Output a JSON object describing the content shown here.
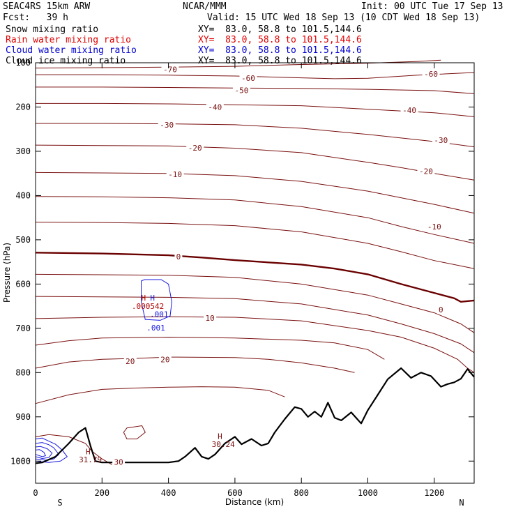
{
  "header": {
    "model": "SEAC4RS 15km ARW",
    "center": "NCAR/MMM",
    "init": "Init: 00 UTC Tue 17 Sep 13",
    "fcst": "Fcst:   39 h",
    "valid": "Valid: 15 UTC Wed 18 Sep 13 (10 CDT Wed 18 Sep 13)",
    "fields": [
      {
        "name": "Snow mixing ratio",
        "xy": "XY=  83.0, 58.8 to 101.5,144.6",
        "color": "#000000"
      },
      {
        "name": "Rain water mixing ratio",
        "xy": "XY=  83.0, 58.8 to 101.5,144.6",
        "color": "#e00000"
      },
      {
        "name": "Cloud water mixing ratio",
        "xy": "XY=  83.0, 58.8 to 101.5,144.6",
        "color": "#0000d0"
      },
      {
        "name": "Cloud ice mixing ratio",
        "xy": "XY=  83.0, 58.8 to 101.5,144.6",
        "color": "#000000"
      }
    ]
  },
  "chart_data": {
    "type": "line",
    "xlabel": "Distance (km)",
    "ylabel": "Pressure (hPa)",
    "xlim": [
      0,
      1320
    ],
    "ylim": [
      1050,
      100
    ],
    "x_ticks": [
      0,
      200,
      400,
      600,
      800,
      1000,
      1200
    ],
    "y_ticks": [
      100,
      200,
      300,
      400,
      500,
      600,
      700,
      800,
      900,
      1000
    ],
    "x_tick_labels": [
      "0",
      "200",
      "400",
      "600",
      "800",
      "1000",
      "1200"
    ],
    "y_tick_labels": [
      "100",
      "200",
      "300",
      "400",
      "500",
      "600",
      "700",
      "800",
      "900",
      "1000"
    ],
    "end_labels": {
      "left": "S",
      "right": "N"
    },
    "colors": {
      "temperature": "#7a1010",
      "zero_isotherm": "#6a0000",
      "cloud_water": "#1a1ae0",
      "terrain": "#000000",
      "rain_label": "#b00000"
    },
    "isotherms": [
      {
        "label": "-70",
        "x": [
          0,
          200,
          400,
          600,
          700,
          800,
          1000,
          1150,
          1220
        ],
        "y": [
          112,
          111,
          110,
          108,
          106,
          104,
          101,
          97,
          94
        ]
      },
      {
        "label": "-60",
        "x": [
          0,
          200,
          400,
          600,
          800,
          900,
          1000,
          1150,
          1320
        ],
        "y": [
          127,
          127,
          128,
          130,
          134,
          136,
          135,
          128,
          122
        ]
      },
      {
        "label": "-50",
        "x": [
          0,
          200,
          400,
          600,
          800,
          1000,
          1200,
          1320
        ],
        "y": [
          155,
          155,
          156,
          157,
          158,
          160,
          163,
          170
        ]
      },
      {
        "label": "-40",
        "x": [
          0,
          200,
          400,
          600,
          800,
          1000,
          1200,
          1320
        ],
        "y": [
          192,
          192,
          193,
          195,
          197,
          205,
          213,
          222
        ]
      },
      {
        "label": "-30",
        "x": [
          0,
          200,
          400,
          600,
          800,
          1000,
          1100,
          1200,
          1320
        ],
        "y": [
          237,
          237,
          238,
          240,
          248,
          262,
          270,
          278,
          290
        ]
      },
      {
        "label": "-20",
        "x": [
          0,
          200,
          400,
          600,
          800,
          1000,
          1100,
          1200,
          1320
        ],
        "y": [
          286,
          287,
          288,
          293,
          303,
          325,
          337,
          350,
          365
        ]
      },
      {
        "label": "-10",
        "x": [
          0,
          200,
          400,
          600,
          800,
          1000,
          1100,
          1200,
          1320
        ],
        "y": [
          348,
          349,
          350,
          355,
          368,
          390,
          405,
          420,
          440
        ]
      },
      {
        "label": "-10",
        "x": [
          0,
          200,
          400,
          600,
          800,
          1000,
          1100,
          1200,
          1320
        ],
        "y": [
          402,
          403,
          405,
          410,
          425,
          450,
          470,
          488,
          508
        ]
      },
      {
        "label": "-10",
        "x": [
          0,
          200,
          400,
          600,
          800,
          1000,
          1100,
          1200,
          1320
        ],
        "y": [
          460,
          461,
          463,
          468,
          482,
          508,
          527,
          547,
          565
        ]
      },
      {
        "label": "0",
        "x": [
          0,
          200,
          400,
          500,
          600,
          800,
          900,
          1000,
          1100,
          1200,
          1260,
          1280,
          1320
        ],
        "y": [
          529,
          531,
          535,
          540,
          546,
          556,
          565,
          578,
          600,
          620,
          632,
          640,
          637
        ]
      },
      {
        "label": "0",
        "x": [
          0,
          200,
          400,
          600,
          800,
          1000,
          1100,
          1200,
          1280,
          1320
        ],
        "y": [
          578,
          579,
          580,
          585,
          600,
          625,
          645,
          665,
          690,
          710
        ]
      },
      {
        "label": "10",
        "x": [
          0,
          200,
          400,
          600,
          800,
          1000,
          1100,
          1200,
          1280,
          1320
        ],
        "y": [
          628,
          629,
          630,
          633,
          645,
          670,
          690,
          712,
          735,
          755
        ]
      },
      {
        "label": "10",
        "x": [
          0,
          200,
          400,
          600,
          800,
          1000,
          1100,
          1200,
          1270,
          1300,
          1320
        ],
        "y": [
          678,
          675,
          674,
          675,
          683,
          705,
          720,
          745,
          770,
          790,
          800
        ]
      },
      {
        "label": "20",
        "x": [
          0,
          100,
          200,
          400,
          600,
          800,
          900,
          1000,
          1050
        ],
        "y": [
          738,
          728,
          722,
          720,
          722,
          727,
          733,
          748,
          770
        ]
      },
      {
        "label": "20",
        "x": [
          0,
          100,
          200,
          300,
          400,
          600,
          700,
          800,
          900,
          960
        ],
        "y": [
          790,
          776,
          770,
          768,
          765,
          766,
          770,
          778,
          790,
          800
        ]
      },
      {
        "label": "20",
        "x": [
          0,
          100,
          200,
          300,
          400,
          500,
          600,
          700,
          750
        ],
        "y": [
          870,
          850,
          838,
          835,
          833,
          832,
          833,
          840,
          855
        ]
      },
      {
        "label": "30",
        "x": [
          0,
          40,
          100,
          150,
          170,
          200,
          230
        ],
        "y": [
          945,
          940,
          945,
          960,
          978,
          995,
          1008
        ]
      }
    ],
    "closed_isotherm": {
      "label": "",
      "x": [
        275,
        320,
        330,
        305,
        275,
        265,
        275
      ],
      "y": [
        925,
        920,
        935,
        950,
        950,
        935,
        925
      ]
    },
    "cloud_water_outer": {
      "x": [
        318,
        328,
        378,
        400,
        410,
        405,
        375,
        330,
        318,
        318
      ],
      "y": [
        593,
        590,
        590,
        600,
        640,
        672,
        682,
        680,
        640,
        593
      ]
    },
    "cloud_water_surface_rings": [
      {
        "x": [
          0,
          20,
          40,
          60,
          80,
          95,
          75,
          40,
          0
        ],
        "y": [
          950,
          948,
          955,
          962,
          975,
          990,
          1000,
          1003,
          1000
        ]
      },
      {
        "x": [
          0,
          20,
          40,
          55,
          70,
          55,
          30,
          0
        ],
        "y": [
          960,
          958,
          963,
          970,
          985,
          995,
          998,
          995
        ]
      },
      {
        "x": [
          0,
          15,
          35,
          50,
          40,
          20,
          0
        ],
        "y": [
          968,
          967,
          972,
          982,
          992,
          994,
          990
        ]
      },
      {
        "x": [
          0,
          12,
          25,
          30,
          20,
          0
        ],
        "y": [
          975,
          974,
          980,
          988,
          990,
          985
        ]
      }
    ],
    "terrain": {
      "x": [
        0,
        20,
        60,
        100,
        130,
        150,
        165,
        180,
        200,
        250,
        300,
        350,
        400,
        430,
        450,
        480,
        500,
        520,
        540,
        570,
        600,
        620,
        650,
        680,
        700,
        720,
        750,
        780,
        800,
        820,
        840,
        860,
        880,
        900,
        920,
        950,
        980,
        1000,
        1030,
        1060,
        1100,
        1130,
        1160,
        1190,
        1220,
        1240,
        1260,
        1280,
        1300,
        1320
      ],
      "y": [
        1005,
        1003,
        990,
        960,
        935,
        925,
        965,
        1000,
        1003,
        1003,
        1003,
        1003,
        1003,
        1000,
        990,
        970,
        990,
        995,
        985,
        960,
        945,
        962,
        950,
        965,
        960,
        935,
        905,
        878,
        882,
        900,
        888,
        900,
        868,
        902,
        908,
        890,
        915,
        885,
        850,
        815,
        790,
        812,
        800,
        808,
        832,
        826,
        822,
        814,
        792,
        810
      ]
    },
    "annotations": [
      {
        "text": "H",
        "x": 325,
        "y": 637,
        "group": "rain"
      },
      {
        "text": ".000542",
        "x": 338,
        "y": 656,
        "group": "rain"
      },
      {
        "text": "H",
        "x": 352,
        "y": 637,
        "group": "cloud"
      },
      {
        "text": ".001",
        "x": 362,
        "y": 705,
        "group": "cloud"
      },
      {
        "text": ".001",
        "x": 372,
        "y": 674,
        "group": "cloud_small"
      },
      {
        "text": "H",
        "x": 158,
        "y": 985,
        "group": "temp"
      },
      {
        "text": "31.79",
        "x": 165,
        "y": 1003,
        "group": "temp"
      },
      {
        "text": "H",
        "x": 555,
        "y": 950,
        "group": "temp"
      },
      {
        "text": "30.24",
        "x": 565,
        "y": 968,
        "group": "temp"
      }
    ],
    "contour_labels": [
      {
        "text": "-70",
        "x": 405,
        "y": 115
      },
      {
        "text": "-60",
        "x": 640,
        "y": 135
      },
      {
        "text": "-60",
        "x": 1190,
        "y": 125
      },
      {
        "text": "-50",
        "x": 620,
        "y": 162
      },
      {
        "text": "-40",
        "x": 540,
        "y": 200
      },
      {
        "text": "-40",
        "x": 1125,
        "y": 207
      },
      {
        "text": "-30",
        "x": 395,
        "y": 240
      },
      {
        "text": "-30",
        "x": 1220,
        "y": 275
      },
      {
        "text": "-20",
        "x": 480,
        "y": 292
      },
      {
        "text": "-20",
        "x": 1175,
        "y": 345
      },
      {
        "text": "-10",
        "x": 420,
        "y": 352
      },
      {
        "text": "-10",
        "x": 1200,
        "y": 470
      },
      {
        "text": "0",
        "x": 430,
        "y": 538
      },
      {
        "text": "0",
        "x": 1220,
        "y": 658
      },
      {
        "text": "10",
        "x": 525,
        "y": 677
      },
      {
        "text": "20",
        "x": 285,
        "y": 774
      },
      {
        "text": "20",
        "x": 390,
        "y": 770
      },
      {
        "text": "30",
        "x": 250,
        "y": 1002
      }
    ]
  }
}
